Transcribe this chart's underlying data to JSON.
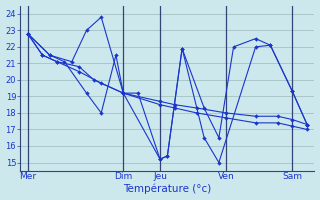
{
  "background_color": "#cce8ec",
  "grid_color": "#99bbbb",
  "line_color": "#1a35cc",
  "xlabel": "Température (°c)",
  "ylim": [
    14.5,
    24.5
  ],
  "yticks": [
    15,
    16,
    17,
    18,
    19,
    20,
    21,
    22,
    23,
    24
  ],
  "xlim": [
    0,
    40
  ],
  "day_labels": [
    "Mer",
    "Dim",
    "Jeu",
    "Ven",
    "Sam"
  ],
  "day_positions": [
    1,
    14,
    19,
    28,
    37
  ],
  "series": [
    {
      "x": [
        1,
        4,
        6,
        9,
        11,
        13,
        14,
        16,
        19,
        20,
        22,
        25,
        27,
        29,
        32,
        34,
        37,
        39
      ],
      "y": [
        22.8,
        21.5,
        21.1,
        19.2,
        18.0,
        21.5,
        19.2,
        19.2,
        15.2,
        15.4,
        21.9,
        18.3,
        16.5,
        22.0,
        22.5,
        22.1,
        19.3,
        17.3
      ]
    },
    {
      "x": [
        1,
        4,
        7,
        9,
        11,
        14,
        19,
        20,
        22,
        25,
        27,
        32,
        34,
        37,
        39
      ],
      "y": [
        22.8,
        21.5,
        21.1,
        23.0,
        23.8,
        19.2,
        15.2,
        15.4,
        21.9,
        16.5,
        15.0,
        22.0,
        22.1,
        19.3,
        17.3
      ]
    },
    {
      "x": [
        1,
        3,
        5,
        8,
        10,
        14,
        19,
        21,
        24,
        28,
        32,
        35,
        37,
        39
      ],
      "y": [
        22.8,
        21.5,
        21.1,
        20.8,
        20.0,
        19.2,
        18.7,
        18.5,
        18.3,
        18.0,
        17.8,
        17.8,
        17.6,
        17.3
      ]
    },
    {
      "x": [
        1,
        3,
        5,
        8,
        11,
        14,
        19,
        21,
        24,
        28,
        32,
        35,
        37,
        39
      ],
      "y": [
        22.8,
        21.5,
        21.1,
        20.5,
        19.8,
        19.2,
        18.5,
        18.3,
        18.0,
        17.7,
        17.4,
        17.4,
        17.2,
        17.0
      ]
    }
  ]
}
